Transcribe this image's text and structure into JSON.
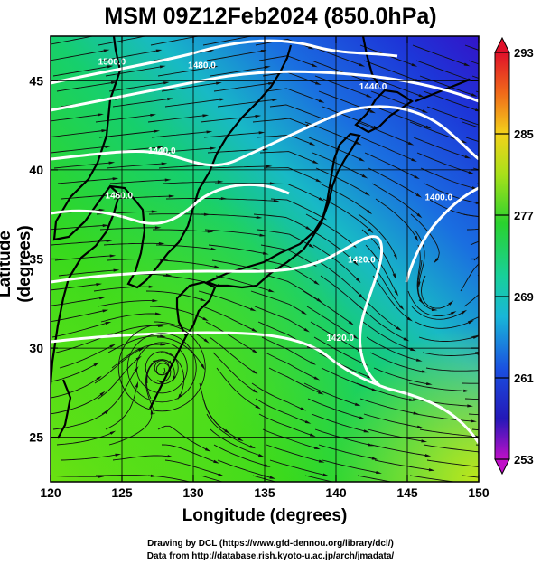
{
  "title": "MSM 09Z12Feb2024 (850.0hPa)",
  "axes": {
    "xlabel": "Longitude (degrees)",
    "ylabel": "Latitude  (degrees)",
    "xlim": [
      120,
      150
    ],
    "ylim": [
      22.5,
      47.5
    ],
    "xticks": [
      "120",
      "125",
      "130",
      "135",
      "140",
      "145",
      "150"
    ],
    "yticks": [
      "25",
      "30",
      "35",
      "40",
      "45"
    ]
  },
  "colorbar": {
    "min": 253,
    "max": 293,
    "labels": [
      "293",
      "285",
      "277",
      "269",
      "261",
      "253"
    ],
    "label_values": [
      293,
      285,
      277,
      269,
      261,
      253
    ]
  },
  "contour_labels": [
    {
      "text": "1500.0",
      "lon": 124.3,
      "lat": 45.9
    },
    {
      "text": "1480.0",
      "lon": 130.6,
      "lat": 45.7
    },
    {
      "text": "1440.0",
      "lon": 142.6,
      "lat": 44.5
    },
    {
      "text": "1440.0",
      "lon": 127.8,
      "lat": 40.9
    },
    {
      "text": "1460.0",
      "lon": 124.8,
      "lat": 38.4
    },
    {
      "text": "1400.0",
      "lon": 147.2,
      "lat": 38.3
    },
    {
      "text": "1420.0",
      "lon": 141.8,
      "lat": 34.8
    },
    {
      "text": "1420.0",
      "lon": 140.3,
      "lat": 30.4
    }
  ],
  "cyclone_center": {
    "lon": 127.8,
    "lat": 28.9
  },
  "credits": {
    "line1": "Drawing by DCL (https://www.gfd-dennou.org/library/dcl/)",
    "line2": "Data from http://database.rish.kyoto-u.ac.jp/arch/jmadata/"
  }
}
